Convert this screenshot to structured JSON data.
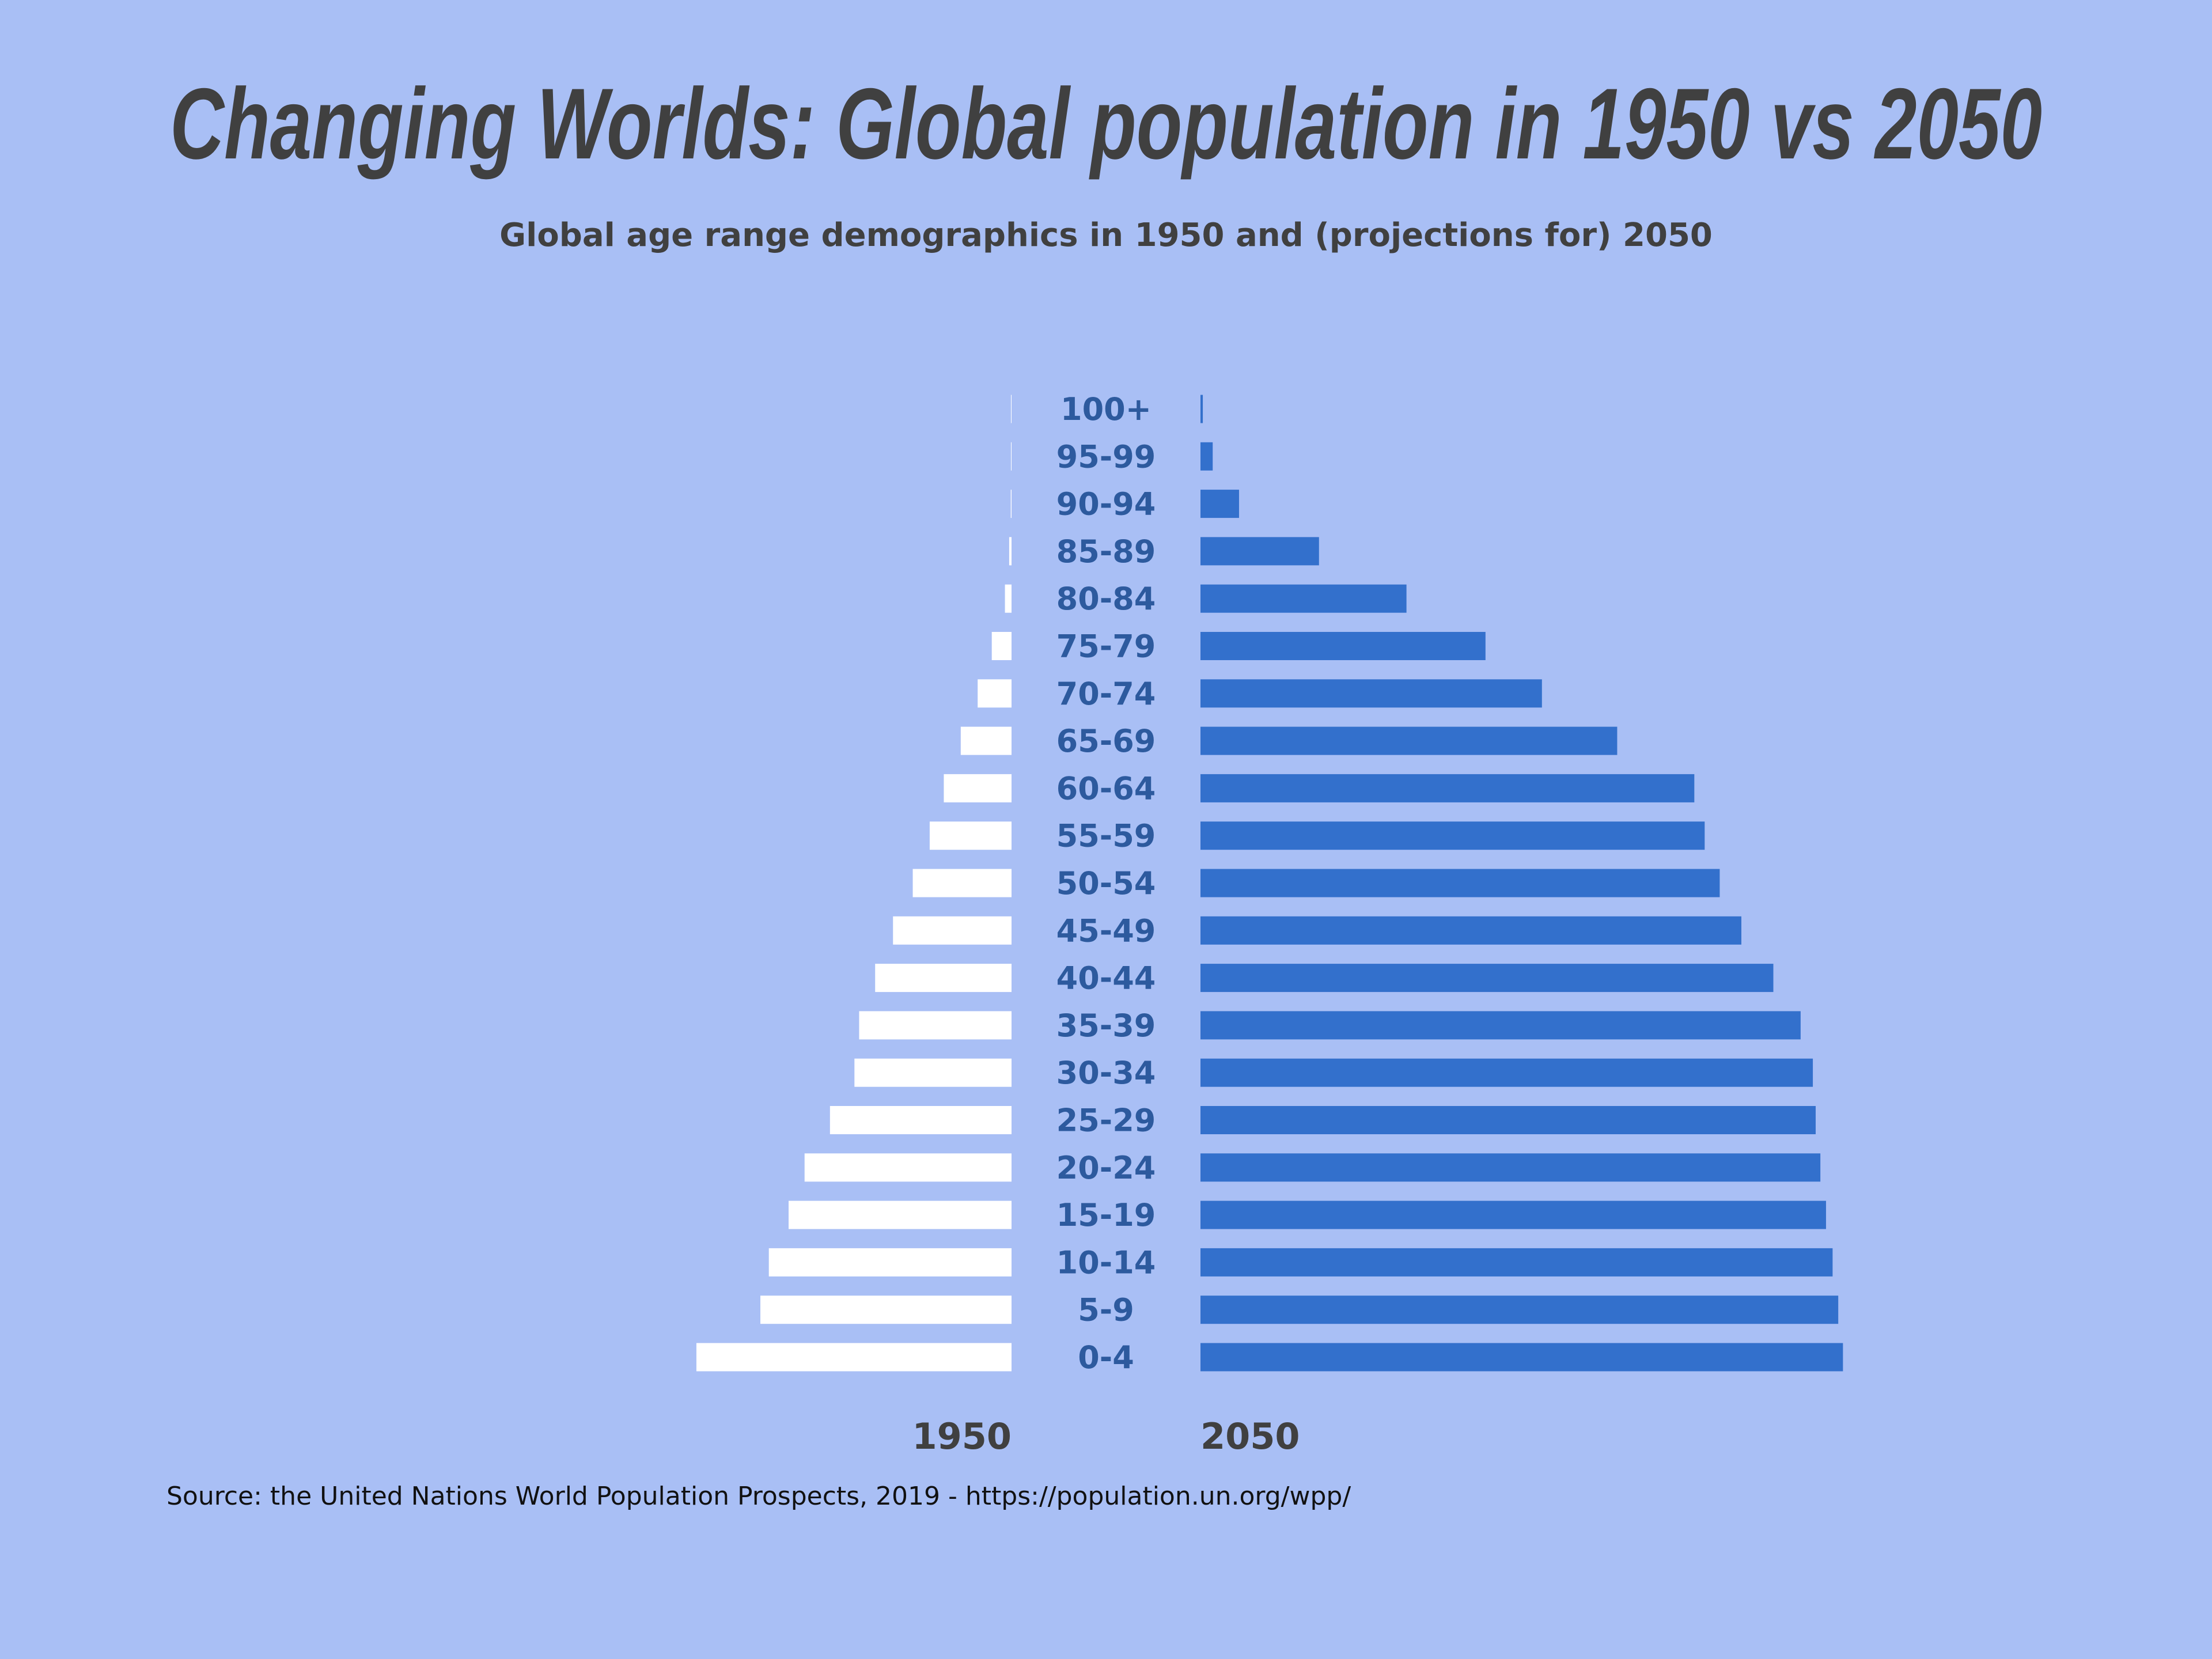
{
  "chart_data": {
    "type": "bar",
    "orientation": "horizontal",
    "layout": "population-pyramid",
    "title": "Changing Worlds: Global population in 1950 vs 2050",
    "subtitle": "Global age range demographics in 1950 and (projections for) 2050",
    "source": "Source: the United Nations World Population Prospects, 2019 - https://population.un.org/wpp/",
    "categories": [
      "100+",
      "95-99",
      "90-94",
      "85-89",
      "80-84",
      "75-79",
      "70-74",
      "65-69",
      "60-64",
      "55-59",
      "50-54",
      "45-49",
      "40-44",
      "35-39",
      "30-34",
      "25-29",
      "20-24",
      "15-19",
      "10-14",
      "5-9",
      "0-4"
    ],
    "series": [
      {
        "name": "1950",
        "side": "left",
        "color": "#ffffff",
        "values": [
          0.1,
          0.4,
          0.8,
          2.5,
          7,
          21,
          36,
          54,
          72,
          87,
          105,
          126,
          145,
          162,
          167,
          193,
          220,
          237,
          258,
          267,
          335
        ]
      },
      {
        "name": "2050",
        "side": "right",
        "color": "#3370cc",
        "values": [
          2.5,
          13,
          41,
          126,
          219,
          303,
          363,
          443,
          525,
          536,
          552,
          575,
          609,
          638,
          651,
          654,
          659,
          665,
          672,
          678,
          683
        ]
      }
    ],
    "value_unit_estimate": "millions (no axis printed; estimated)",
    "grid": false,
    "legend": "none",
    "colors": {
      "background": "#a9bff5",
      "label": "#2d5a9e",
      "text": "#404040"
    }
  }
}
